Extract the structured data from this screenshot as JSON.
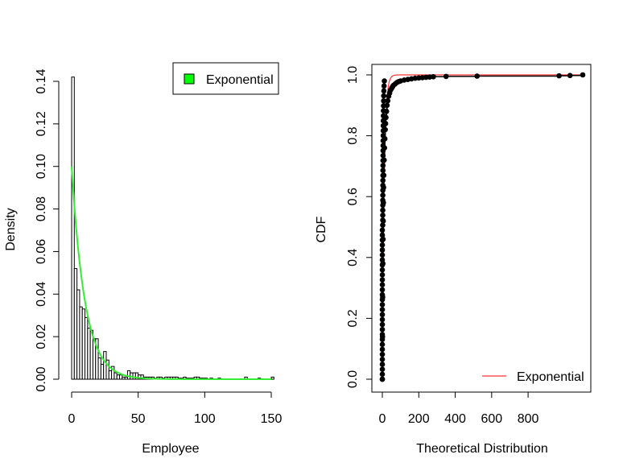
{
  "chart_data": [
    {
      "type": "bar",
      "title": "",
      "xlabel": "Employee",
      "ylabel": "Density",
      "xlim": [
        0,
        155
      ],
      "ylim": [
        0,
        0.14
      ],
      "xticks": [
        "0",
        "50",
        "100",
        "150"
      ],
      "yticks": [
        "0.00",
        "0.02",
        "0.04",
        "0.06",
        "0.08",
        "0.10",
        "0.12",
        "0.14"
      ],
      "bin_width": 2,
      "histogram": {
        "bin_start": [
          0,
          2,
          4,
          6,
          8,
          10,
          12,
          14,
          16,
          18,
          20,
          22,
          24,
          26,
          28,
          30,
          32,
          34,
          36,
          38,
          40,
          42,
          44,
          46,
          48,
          50,
          52,
          54,
          56,
          58,
          60,
          62,
          64,
          66,
          68,
          70,
          72,
          74,
          76,
          78,
          80,
          82,
          84,
          86,
          88,
          90,
          92,
          94,
          96,
          98,
          100,
          104,
          110,
          130,
          140,
          150
        ],
        "density": [
          0.142,
          0.052,
          0.042,
          0.034,
          0.033,
          0.029,
          0.024,
          0.023,
          0.019,
          0.019,
          0.01,
          0.007,
          0.013,
          0.009,
          0.004,
          0.006,
          0.003,
          0.002,
          0.002,
          0.001,
          0.001,
          0.004,
          0.003,
          0.003,
          0.003,
          0.002,
          0.002,
          0.001,
          0.001,
          0.001,
          0.001,
          0.0005,
          0.001,
          0.001,
          0.0005,
          0.001,
          0.001,
          0.001,
          0.001,
          0.001,
          0.0005,
          0.0005,
          0.001,
          0.0005,
          0.0005,
          0.0005,
          0.001,
          0.001,
          0.0005,
          0.0005,
          0.0005,
          0.0005,
          0.0005,
          0.001,
          0.0005,
          0.001
        ]
      },
      "series": [
        {
          "name": "Exponential",
          "type": "line",
          "color": "#33ee33",
          "rate": 0.1
        }
      ],
      "legend": {
        "position": "top-right",
        "entries": [
          "Exponential"
        ],
        "swatch_color": "#00ff00"
      },
      "grid": false
    },
    {
      "type": "line",
      "title": "",
      "xlabel": "Theoretical Distribution",
      "ylabel": "CDF",
      "xlim": [
        0,
        1100
      ],
      "ylim": [
        0,
        1.0
      ],
      "xticks": [
        "0",
        "200",
        "400",
        "600",
        "800"
      ],
      "yticks": [
        "0.0",
        "0.2",
        "0.4",
        "0.6",
        "0.8",
        "1.0"
      ],
      "empirical_points": {
        "x": [
          0,
          1,
          2,
          3,
          4,
          5,
          6,
          7,
          8,
          10,
          12,
          14,
          16,
          18,
          20,
          23,
          26,
          30,
          35,
          40,
          45,
          50,
          55,
          60,
          70,
          80,
          90,
          100,
          120,
          140,
          160,
          180,
          200,
          220,
          240,
          260,
          280,
          350,
          520,
          970,
          1030,
          1100
        ],
        "y": [
          0.0,
          0.14,
          0.27,
          0.38,
          0.46,
          0.52,
          0.58,
          0.63,
          0.67,
          0.72,
          0.76,
          0.79,
          0.82,
          0.84,
          0.86,
          0.88,
          0.9,
          0.915,
          0.93,
          0.94,
          0.95,
          0.955,
          0.96,
          0.965,
          0.97,
          0.975,
          0.978,
          0.98,
          0.983,
          0.985,
          0.987,
          0.989,
          0.99,
          0.991,
          0.992,
          0.993,
          0.994,
          0.995,
          0.996,
          0.997,
          0.998,
          1.0
        ]
      },
      "series": [
        {
          "name": "Exponential",
          "type": "line",
          "color": "#ff3333",
          "rate": 0.1
        }
      ],
      "legend": {
        "position": "bottom-right",
        "entries": [
          "Exponential"
        ]
      },
      "grid": false
    }
  ]
}
